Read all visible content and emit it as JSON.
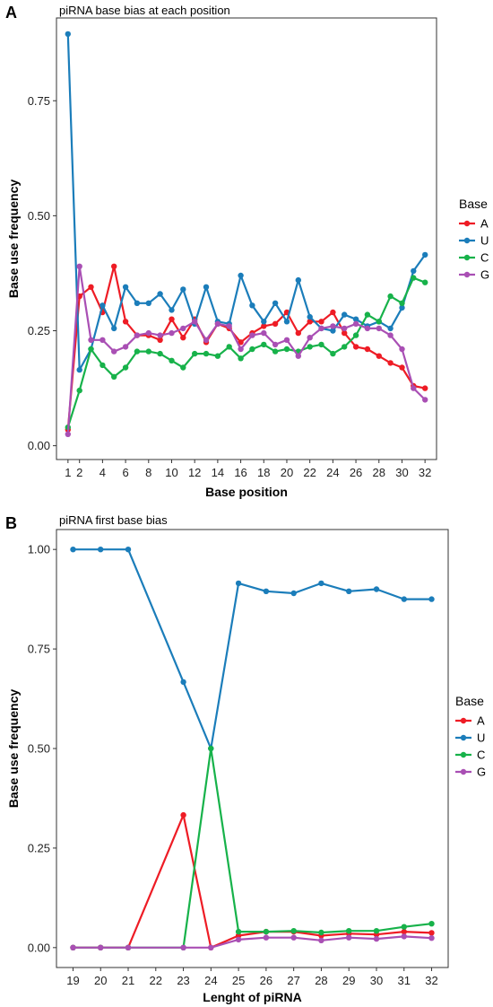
{
  "chart_data": [
    {
      "panel": "A",
      "type": "line",
      "title": "piRNA base bias at each position",
      "xlabel": "Base position",
      "ylabel": "Base use frequency",
      "xlim": [
        0,
        33
      ],
      "ylim": [
        -0.03,
        0.93
      ],
      "x": [
        1,
        2,
        3,
        4,
        5,
        6,
        7,
        8,
        9,
        10,
        11,
        12,
        13,
        14,
        15,
        16,
        17,
        18,
        19,
        20,
        21,
        22,
        23,
        24,
        25,
        26,
        27,
        28,
        29,
        30,
        31,
        32
      ],
      "x_ticks": [
        1,
        2,
        4,
        6,
        8,
        10,
        12,
        14,
        16,
        18,
        20,
        22,
        24,
        26,
        28,
        30,
        32
      ],
      "y_ticks": [
        0.0,
        0.25,
        0.5,
        0.75
      ],
      "y_tick_labels": [
        "0.00",
        "0.25",
        "0.50",
        "0.75"
      ],
      "grid": false,
      "legend": {
        "title": "Base",
        "position": "right"
      },
      "series": [
        {
          "name": "A",
          "color": "#ee1c25",
          "values": [
            0.035,
            0.325,
            0.345,
            0.29,
            0.39,
            0.27,
            0.24,
            0.24,
            0.23,
            0.275,
            0.235,
            0.275,
            0.225,
            0.265,
            0.255,
            0.225,
            0.245,
            0.26,
            0.265,
            0.29,
            0.245,
            0.27,
            0.27,
            0.29,
            0.245,
            0.215,
            0.21,
            0.195,
            0.18,
            0.17,
            0.13,
            0.125
          ]
        },
        {
          "name": "U",
          "color": "#1b7dba",
          "values": [
            0.895,
            0.165,
            0.21,
            0.305,
            0.255,
            0.345,
            0.31,
            0.31,
            0.33,
            0.295,
            0.34,
            0.265,
            0.345,
            0.27,
            0.265,
            0.37,
            0.305,
            0.27,
            0.31,
            0.27,
            0.36,
            0.28,
            0.255,
            0.25,
            0.285,
            0.275,
            0.26,
            0.27,
            0.255,
            0.3,
            0.38,
            0.415
          ]
        },
        {
          "name": "C",
          "color": "#17b24a",
          "values": [
            0.04,
            0.12,
            0.21,
            0.175,
            0.15,
            0.17,
            0.205,
            0.205,
            0.2,
            0.185,
            0.17,
            0.2,
            0.2,
            0.195,
            0.215,
            0.19,
            0.21,
            0.22,
            0.205,
            0.21,
            0.205,
            0.215,
            0.22,
            0.2,
            0.215,
            0.24,
            0.285,
            0.27,
            0.325,
            0.31,
            0.365,
            0.355
          ]
        },
        {
          "name": "G",
          "color": "#a94fb4",
          "values": [
            0.025,
            0.39,
            0.23,
            0.23,
            0.205,
            0.215,
            0.24,
            0.245,
            0.24,
            0.245,
            0.255,
            0.27,
            0.23,
            0.265,
            0.26,
            0.21,
            0.24,
            0.245,
            0.22,
            0.23,
            0.195,
            0.235,
            0.255,
            0.26,
            0.255,
            0.265,
            0.255,
            0.255,
            0.24,
            0.21,
            0.125,
            0.1
          ]
        }
      ]
    },
    {
      "panel": "B",
      "type": "line",
      "title": "piRNA first base bias",
      "xlabel": "Lenght of piRNA",
      "ylabel": "Base use frequency",
      "xlim": [
        18.4,
        32.6
      ],
      "ylim": [
        -0.05,
        1.05
      ],
      "x": [
        19,
        20,
        21,
        22,
        23,
        24,
        25,
        26,
        27,
        28,
        29,
        30,
        31,
        32
      ],
      "x_ticks": [
        19,
        20,
        21,
        22,
        23,
        24,
        25,
        26,
        27,
        28,
        29,
        30,
        31,
        32
      ],
      "y_ticks": [
        0.0,
        0.25,
        0.5,
        0.75,
        1.0
      ],
      "y_tick_labels": [
        "0.00",
        "0.25",
        "0.50",
        "0.75",
        "1.00"
      ],
      "grid": false,
      "legend": {
        "title": "Base",
        "position": "right"
      },
      "series": [
        {
          "name": "A",
          "color": "#ee1c25",
          "x": [
            19,
            20,
            21,
            23,
            24,
            25,
            26,
            27,
            28,
            29,
            30,
            31,
            32
          ],
          "values": [
            0.0,
            0.0,
            0.0,
            0.333,
            0.0,
            0.03,
            0.04,
            0.04,
            0.03,
            0.035,
            0.033,
            0.04,
            0.037
          ]
        },
        {
          "name": "U",
          "color": "#1b7dba",
          "x": [
            19,
            20,
            21,
            23,
            24,
            25,
            26,
            27,
            28,
            29,
            30,
            31,
            32
          ],
          "values": [
            1.0,
            1.0,
            1.0,
            0.667,
            0.5,
            0.915,
            0.895,
            0.89,
            0.915,
            0.895,
            0.9,
            0.875,
            0.875
          ]
        },
        {
          "name": "C",
          "color": "#17b24a",
          "x": [
            19,
            20,
            21,
            23,
            24,
            25,
            26,
            27,
            28,
            29,
            30,
            31,
            32
          ],
          "values": [
            0.0,
            0.0,
            0.0,
            0.0,
            0.5,
            0.04,
            0.04,
            0.042,
            0.038,
            0.042,
            0.042,
            0.052,
            0.06
          ]
        },
        {
          "name": "G",
          "color": "#a94fb4",
          "x": [
            19,
            20,
            21,
            23,
            24,
            25,
            26,
            27,
            28,
            29,
            30,
            31,
            32
          ],
          "values": [
            0.0,
            0.0,
            0.0,
            0.0,
            0.0,
            0.02,
            0.025,
            0.025,
            0.018,
            0.025,
            0.022,
            0.028,
            0.024
          ]
        }
      ]
    }
  ]
}
